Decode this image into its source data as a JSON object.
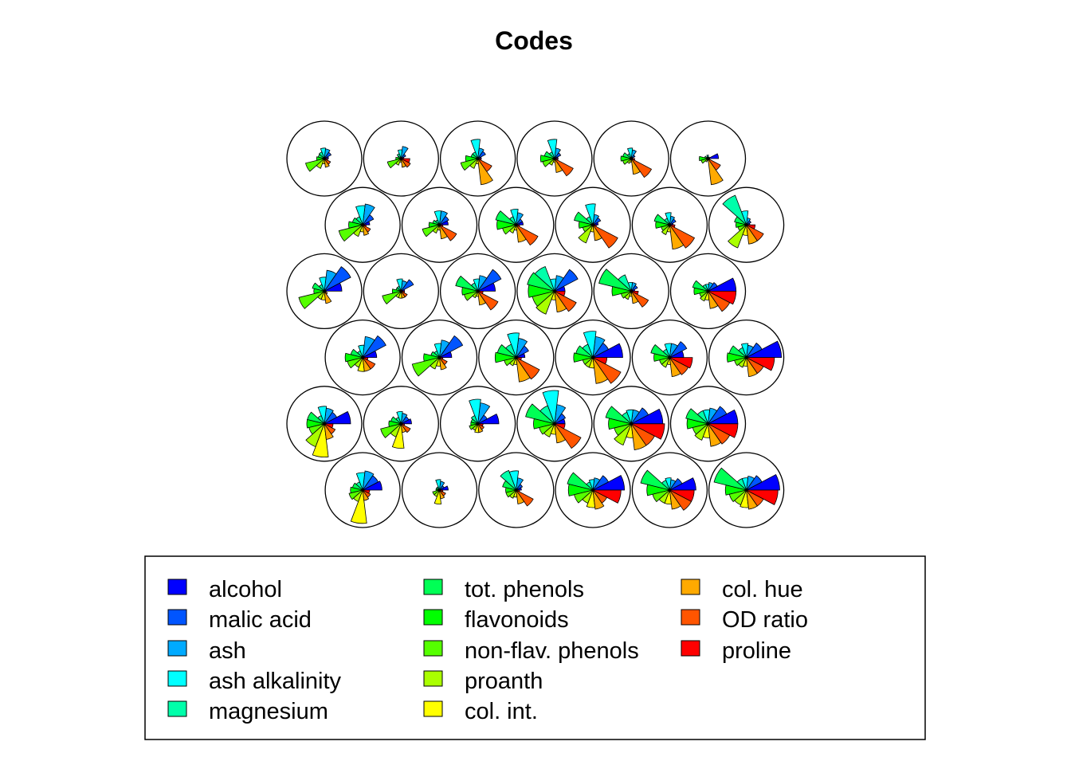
{
  "chart_data": {
    "type": "som-codes-segments",
    "title": "Codes",
    "grid": {
      "rows": 6,
      "cols": 6,
      "topology": "hexagonal"
    },
    "variables": [
      {
        "name": "alcohol",
        "color": "#0000FF"
      },
      {
        "name": "malic acid",
        "color": "#0055FF"
      },
      {
        "name": "ash",
        "color": "#00AAFF"
      },
      {
        "name": "ash alkalinity",
        "color": "#00FFFF"
      },
      {
        "name": "magnesium",
        "color": "#00FFAA"
      },
      {
        "name": "tot. phenols",
        "color": "#00FF55"
      },
      {
        "name": "flavonoids",
        "color": "#00FF00"
      },
      {
        "name": "non-flav. phenols",
        "color": "#55FF00"
      },
      {
        "name": "proanth",
        "color": "#AAFF00"
      },
      {
        "name": "col. int.",
        "color": "#FFFF00"
      },
      {
        "name": "col. hue",
        "color": "#FFAA00"
      },
      {
        "name": "OD ratio",
        "color": "#FF5500"
      },
      {
        "name": "proline",
        "color": "#FF0000"
      }
    ],
    "legend": {
      "position": "bottom",
      "columns": 3
    },
    "codes": [
      [
        0.12,
        0.22,
        0.28,
        0.3,
        0.2,
        0.18,
        0.22,
        0.55,
        0.3,
        0.15,
        0.25,
        0.2,
        0.1
      ],
      [
        0.08,
        0.15,
        0.35,
        0.25,
        0.15,
        0.1,
        0.15,
        0.4,
        0.2,
        0.1,
        0.25,
        0.3,
        0.25
      ],
      [
        0.1,
        0.25,
        0.3,
        0.55,
        0.2,
        0.2,
        0.35,
        0.5,
        0.3,
        0.15,
        0.75,
        0.45,
        0.1
      ],
      [
        0.1,
        0.2,
        0.3,
        0.55,
        0.2,
        0.3,
        0.4,
        0.35,
        0.2,
        0.1,
        0.4,
        0.6,
        0.1
      ],
      [
        0.05,
        0.12,
        0.25,
        0.3,
        0.15,
        0.25,
        0.3,
        0.25,
        0.15,
        0.1,
        0.45,
        0.65,
        0.1
      ],
      [
        0.3,
        0.05,
        0.05,
        0.1,
        0.05,
        0.1,
        0.25,
        0.2,
        0.1,
        0.05,
        0.75,
        0.4,
        0.05
      ],
      [
        0.2,
        0.35,
        0.6,
        0.55,
        0.25,
        0.3,
        0.4,
        0.7,
        0.35,
        0.2,
        0.3,
        0.25,
        0.1
      ],
      [
        0.25,
        0.3,
        0.4,
        0.4,
        0.15,
        0.2,
        0.3,
        0.5,
        0.25,
        0.15,
        0.4,
        0.55,
        0.1
      ],
      [
        0.2,
        0.2,
        0.35,
        0.45,
        0.25,
        0.6,
        0.55,
        0.4,
        0.25,
        0.15,
        0.5,
        0.7,
        0.1
      ],
      [
        0.15,
        0.25,
        0.3,
        0.6,
        0.25,
        0.55,
        0.4,
        0.3,
        0.55,
        0.2,
        0.45,
        0.8,
        0.1
      ],
      [
        0.1,
        0.2,
        0.25,
        0.35,
        0.2,
        0.45,
        0.4,
        0.25,
        0.3,
        0.2,
        0.7,
        0.8,
        0.15
      ],
      [
        0.1,
        0.15,
        0.2,
        0.4,
        0.9,
        0.35,
        0.3,
        0.25,
        0.7,
        0.3,
        0.55,
        0.55,
        0.25
      ],
      [
        0.5,
        0.85,
        0.6,
        0.4,
        0.2,
        0.35,
        0.3,
        0.75,
        0.25,
        0.25,
        0.35,
        0.1,
        0.05
      ],
      [
        0.1,
        0.4,
        0.3,
        0.35,
        0.15,
        0.15,
        0.25,
        0.55,
        0.2,
        0.2,
        0.2,
        0.2,
        0.1
      ],
      [
        0.5,
        0.75,
        0.45,
        0.35,
        0.25,
        0.65,
        0.45,
        0.4,
        0.2,
        0.15,
        0.4,
        0.65,
        0.15
      ],
      [
        0.3,
        0.75,
        0.45,
        0.35,
        0.75,
        0.8,
        0.75,
        0.65,
        0.7,
        0.25,
        0.6,
        0.7,
        0.3
      ],
      [
        0.1,
        0.2,
        0.25,
        0.25,
        0.5,
        0.95,
        0.55,
        0.3,
        0.25,
        0.15,
        0.35,
        0.55,
        0.2
      ],
      [
        0.8,
        0.3,
        0.25,
        0.2,
        0.2,
        0.45,
        0.4,
        0.25,
        0.3,
        0.25,
        0.5,
        0.7,
        0.8
      ],
      [
        0.4,
        0.75,
        0.6,
        0.35,
        0.2,
        0.35,
        0.5,
        0.45,
        0.3,
        0.4,
        0.4,
        0.4,
        0.15
      ],
      [
        0.35,
        0.75,
        0.5,
        0.4,
        0.2,
        0.25,
        0.45,
        0.8,
        0.35,
        0.25,
        0.35,
        0.25,
        0.1
      ],
      [
        0.25,
        0.4,
        0.55,
        0.7,
        0.4,
        0.55,
        0.6,
        0.35,
        0.25,
        0.2,
        0.7,
        0.75,
        0.15
      ],
      [
        0.85,
        0.5,
        0.6,
        0.75,
        0.4,
        0.5,
        0.55,
        0.3,
        0.3,
        0.3,
        0.75,
        0.9,
        0.4
      ],
      [
        0.4,
        0.55,
        0.4,
        0.4,
        0.25,
        0.55,
        0.45,
        0.3,
        0.3,
        0.2,
        0.55,
        0.6,
        0.65
      ],
      [
        1.0,
        0.5,
        0.35,
        0.4,
        0.3,
        0.5,
        0.55,
        0.35,
        0.3,
        0.25,
        0.55,
        0.55,
        0.8
      ],
      [
        0.75,
        0.4,
        0.45,
        0.5,
        0.25,
        0.5,
        0.5,
        0.45,
        0.7,
        0.95,
        0.45,
        0.35,
        0.25
      ],
      [
        0.3,
        0.25,
        0.3,
        0.35,
        0.2,
        0.3,
        0.35,
        0.6,
        0.4,
        0.7,
        0.25,
        0.3,
        0.1
      ],
      [
        0.6,
        0.3,
        0.6,
        0.7,
        0.25,
        0.2,
        0.2,
        0.25,
        0.2,
        0.25,
        0.25,
        0.2,
        0.15
      ],
      [
        0.3,
        0.35,
        0.55,
        0.95,
        0.55,
        0.85,
        0.6,
        0.45,
        0.4,
        0.3,
        0.55,
        0.85,
        0.3
      ],
      [
        0.9,
        0.55,
        0.4,
        0.4,
        0.35,
        0.75,
        0.65,
        0.5,
        0.65,
        0.4,
        0.75,
        0.75,
        0.95
      ],
      [
        0.85,
        0.6,
        0.45,
        0.4,
        0.4,
        0.65,
        0.6,
        0.45,
        0.5,
        0.4,
        0.65,
        0.7,
        0.85
      ],
      [
        0.55,
        0.5,
        0.55,
        0.5,
        0.25,
        0.3,
        0.35,
        0.4,
        0.35,
        0.95,
        0.3,
        0.25,
        0.2
      ],
      [
        0.25,
        0.15,
        0.25,
        0.3,
        0.1,
        0.1,
        0.1,
        0.2,
        0.2,
        0.4,
        0.25,
        0.2,
        0.1
      ],
      [
        0.15,
        0.2,
        0.35,
        0.55,
        0.6,
        0.4,
        0.3,
        0.3,
        0.25,
        0.2,
        0.4,
        0.55,
        0.1
      ],
      [
        0.9,
        0.5,
        0.35,
        0.3,
        0.25,
        0.75,
        0.7,
        0.55,
        0.4,
        0.5,
        0.55,
        0.45,
        0.8
      ],
      [
        0.75,
        0.4,
        0.3,
        0.35,
        0.3,
        0.85,
        0.65,
        0.5,
        0.4,
        0.4,
        0.55,
        0.7,
        0.7
      ],
      [
        0.95,
        0.5,
        0.4,
        0.35,
        0.35,
        0.95,
        0.6,
        0.5,
        0.45,
        0.5,
        0.55,
        0.55,
        0.9
      ]
    ]
  }
}
